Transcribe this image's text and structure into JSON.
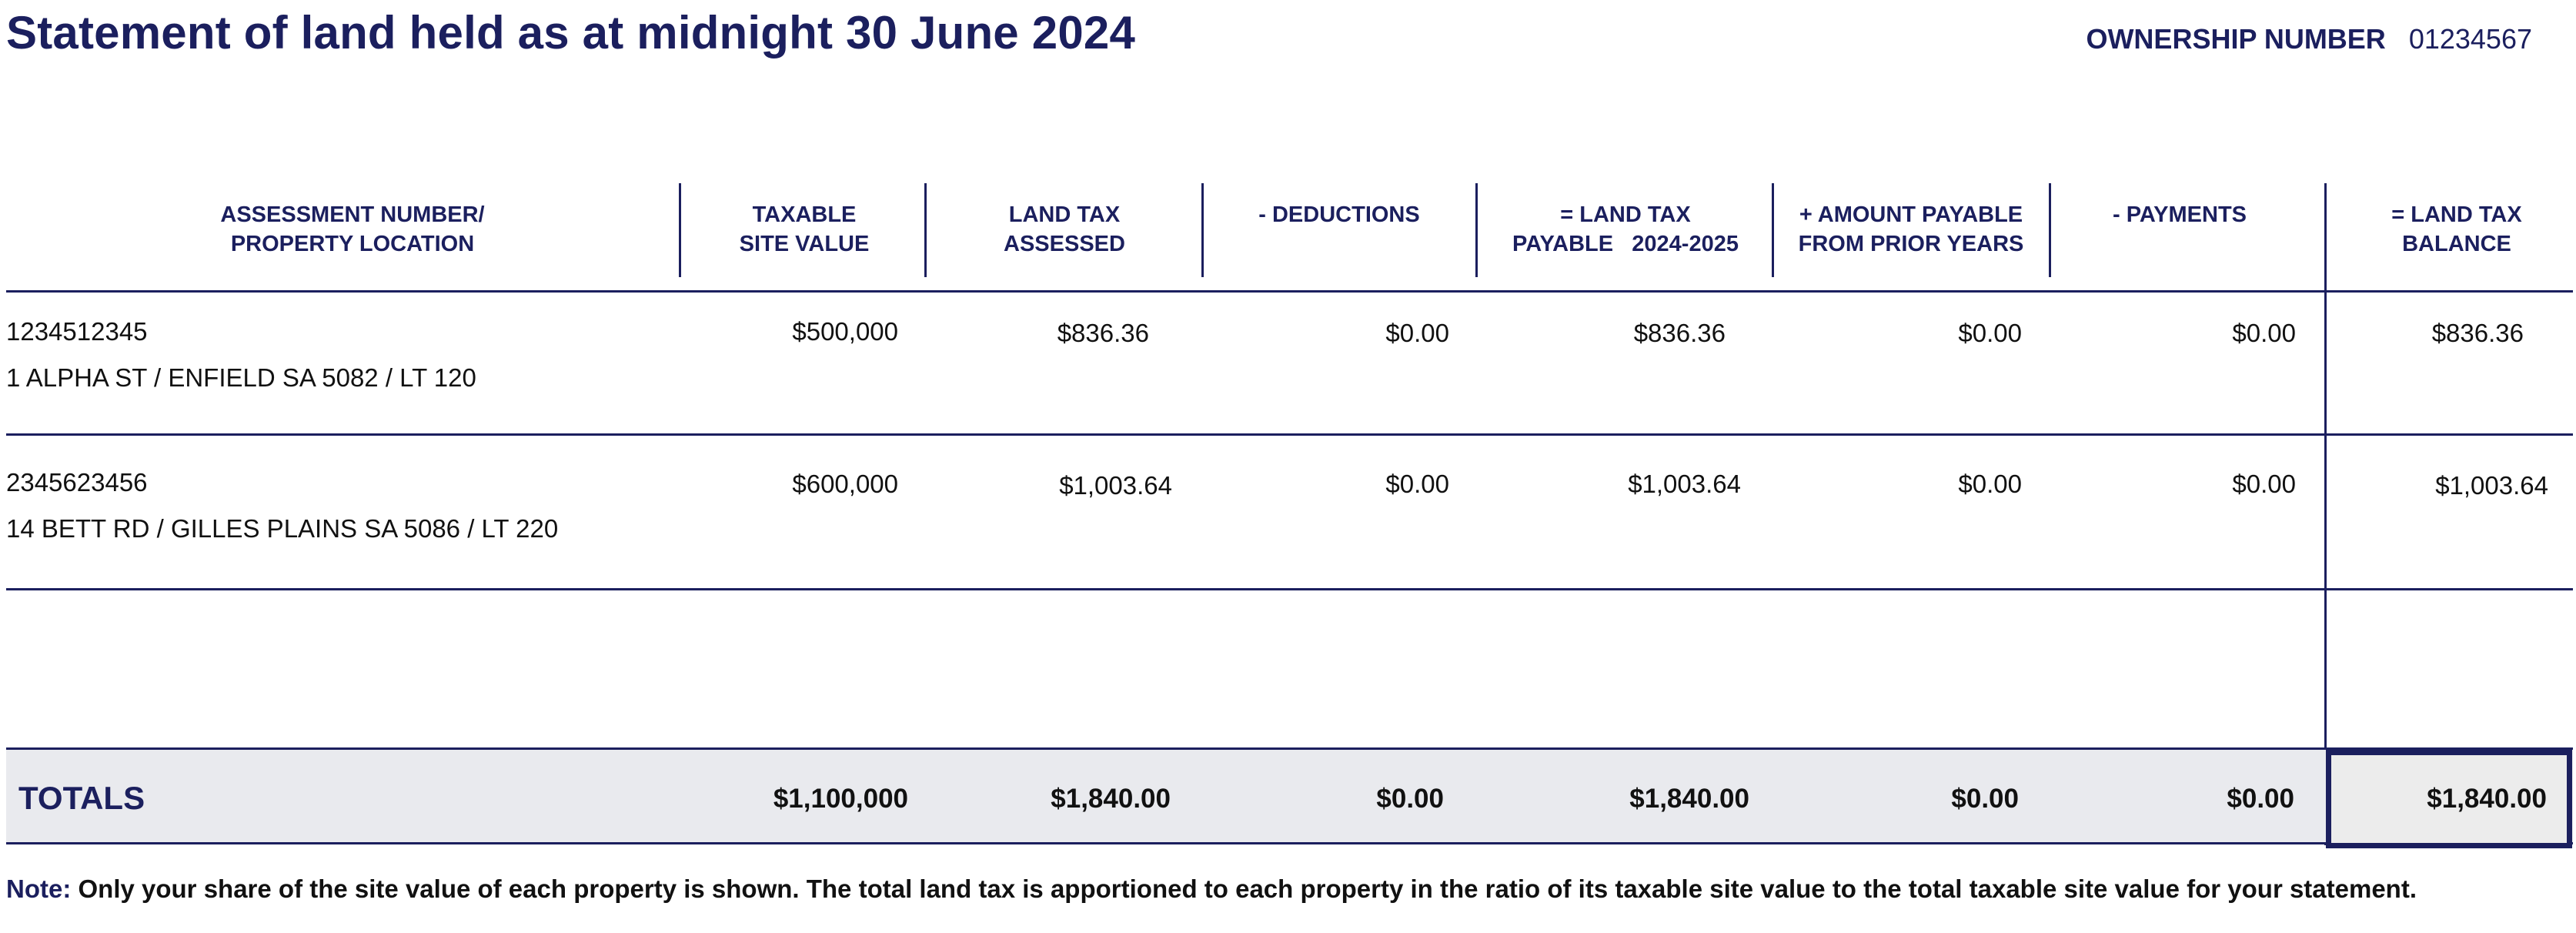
{
  "title": "Statement of land held as at midnight 30 June 2024",
  "ownership": {
    "label": "OWNERSHIP NUMBER",
    "number": "01234567"
  },
  "columns": [
    {
      "line1": "ASSESSMENT NUMBER/",
      "line2": "PROPERTY LOCATION"
    },
    {
      "line1": "TAXABLE",
      "line2": "SITE VALUE"
    },
    {
      "line1": "LAND TAX",
      "line2": "ASSESSED"
    },
    {
      "line1": "- DEDUCTIONS",
      "line2": ""
    },
    {
      "line1": "= LAND TAX",
      "line2": "PAYABLE   2024-2025"
    },
    {
      "line1": "+ AMOUNT PAYABLE",
      "line2": "FROM PRIOR YEARS"
    },
    {
      "line1": "- PAYMENTS",
      "line2": ""
    },
    {
      "line1": "= LAND TAX",
      "line2": "BALANCE"
    }
  ],
  "rows": [
    {
      "assessment_number": "1234512345",
      "location": "1 ALPHA ST / ENFIELD SA 5082 / LT 120",
      "taxable_site_value": "$500,000",
      "land_tax_assessed": "$836.36",
      "deductions": "$0.00",
      "land_tax_payable": "$836.36",
      "prior_years": "$0.00",
      "payments": "$0.00",
      "balance": "$836.36"
    },
    {
      "assessment_number": "2345623456",
      "location": "14 BETT RD / GILLES PLAINS SA 5086 / LT 220",
      "taxable_site_value": "$600,000",
      "land_tax_assessed": "$1,003.64",
      "deductions": "$0.00",
      "land_tax_payable": "$1,003.64",
      "prior_years": "$0.00",
      "payments": "$0.00",
      "balance": "$1,003.64"
    }
  ],
  "totals": {
    "label": "TOTALS",
    "taxable_site_value": "$1,100,000",
    "land_tax_assessed": "$1,840.00",
    "deductions": "$0.00",
    "land_tax_payable": "$1,840.00",
    "prior_years": "$0.00",
    "payments": "$0.00",
    "balance": "$1,840.00"
  },
  "note": {
    "label": "Note:",
    "text": "Only your share of the site value of each property is shown. The total land tax is apportioned to each property in the ratio of its taxable site value to the total taxable site value for your statement."
  },
  "colors": {
    "navy": "#1b1f5e",
    "totals_band": "#e9eaee"
  }
}
